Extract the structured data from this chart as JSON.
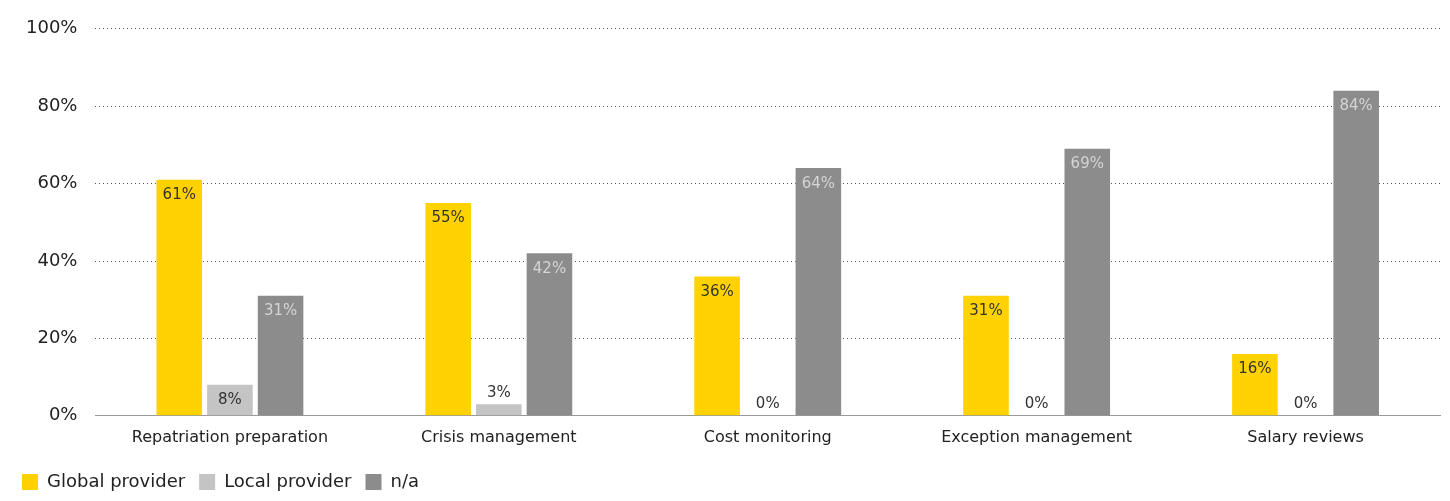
{
  "chart_data": {
    "type": "bar",
    "categories": [
      "Repatriation preparation",
      "Crisis management",
      "Cost monitoring",
      "Exception management",
      "Salary reviews"
    ],
    "series": [
      {
        "name": "Global provider",
        "color": "#ffd200",
        "values": [
          61,
          55,
          36,
          31,
          16
        ],
        "value_labels": [
          "61%",
          "55%",
          "36%",
          "31%",
          "16%"
        ]
      },
      {
        "name": "Local provider",
        "color": "#c4c4c4",
        "values": [
          8,
          3,
          0,
          0,
          0
        ],
        "value_labels": [
          "8%",
          "3%",
          "0%",
          "0%",
          "0%"
        ]
      },
      {
        "name": "n/a",
        "color": "#8c8c8c",
        "values": [
          31,
          42,
          64,
          69,
          84
        ],
        "value_labels": [
          "31%",
          "42%",
          "64%",
          "69%",
          "84%"
        ]
      }
    ],
    "ylim": [
      0,
      100
    ],
    "yticks": [
      {
        "value": 0,
        "label": "0%"
      },
      {
        "value": 20,
        "label": "20%"
      },
      {
        "value": 40,
        "label": "40%"
      },
      {
        "value": 60,
        "label": "60%"
      },
      {
        "value": 80,
        "label": "80%"
      },
      {
        "value": 100,
        "label": "100%"
      }
    ],
    "grid": "y",
    "legend": "bottom left"
  }
}
